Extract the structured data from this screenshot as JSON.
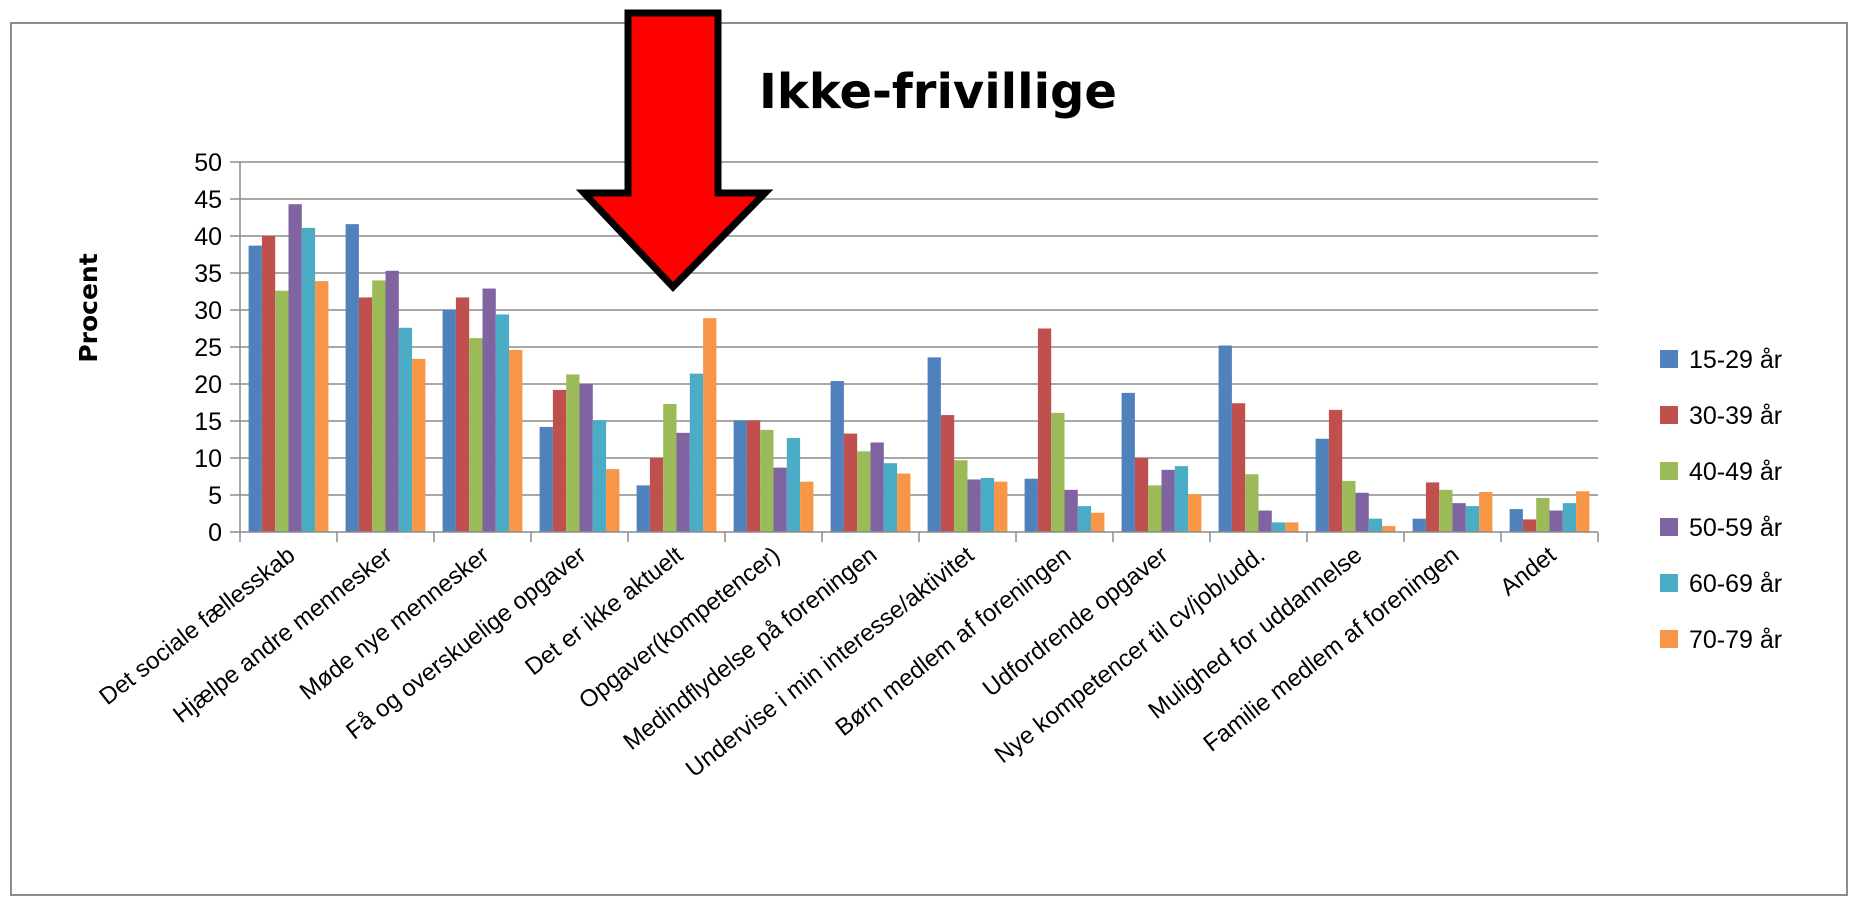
{
  "chart_data": {
    "type": "bar",
    "title": "Ikke-frivillige",
    "ylabel": "Procent",
    "xlabel": "",
    "ylim": [
      0,
      50
    ],
    "yticks": [
      0,
      5,
      10,
      15,
      20,
      25,
      30,
      35,
      40,
      45,
      50
    ],
    "grid": true,
    "legend_position": "right",
    "categories": [
      "Det sociale fællesskab",
      "Hjælpe andre mennesker",
      "Møde nye mennesker",
      "Få og overskuelige opgaver",
      "Det er ikke aktuelt",
      "Opgaver(kompetencer)",
      "Medindflydelse på foreningen",
      "Undervise i min interesse/aktivitet",
      "Børn medlem af foreningen",
      "Udfordrende opgaver",
      "Nye kompetencer til cv/job/udd.",
      "Mulighed for uddannelse",
      "Familie medlem af foreningen",
      "Andet"
    ],
    "series": [
      {
        "name": "15-29 år",
        "color": "#4f81bd",
        "values": [
          38.7,
          41.6,
          30.0,
          14.2,
          6.3,
          15.1,
          20.4,
          23.6,
          7.2,
          18.8,
          25.2,
          12.6,
          1.8,
          3.1
        ]
      },
      {
        "name": "30-39 år",
        "color": "#c0504d",
        "values": [
          40.0,
          31.7,
          31.7,
          19.2,
          10.0,
          15.1,
          13.3,
          15.8,
          27.5,
          10.0,
          17.4,
          16.5,
          6.7,
          1.7
        ]
      },
      {
        "name": "40-49 år",
        "color": "#9bbb59",
        "values": [
          32.6,
          34.0,
          26.2,
          21.3,
          17.3,
          13.8,
          10.9,
          9.7,
          16.1,
          6.3,
          7.8,
          6.9,
          5.7,
          4.6
        ]
      },
      {
        "name": "50-59 år",
        "color": "#8064a2",
        "values": [
          44.3,
          35.3,
          32.9,
          20.0,
          13.4,
          8.7,
          12.1,
          7.1,
          5.7,
          8.4,
          2.9,
          5.3,
          3.9,
          2.9
        ]
      },
      {
        "name": "60-69 år",
        "color": "#4bacc6",
        "values": [
          41.1,
          27.6,
          29.4,
          15.1,
          21.4,
          12.7,
          9.3,
          7.3,
          3.5,
          8.9,
          1.3,
          1.8,
          3.5,
          3.9
        ]
      },
      {
        "name": "70-79 år",
        "color": "#f79646",
        "values": [
          33.9,
          23.4,
          24.6,
          8.5,
          28.9,
          6.8,
          7.9,
          6.8,
          2.6,
          5.1,
          1.3,
          0.8,
          5.4,
          5.5
        ]
      }
    ]
  },
  "arrow": {
    "color": "#ff0000",
    "outline": "#000000",
    "points_to": "Det er ikke aktuelt"
  }
}
